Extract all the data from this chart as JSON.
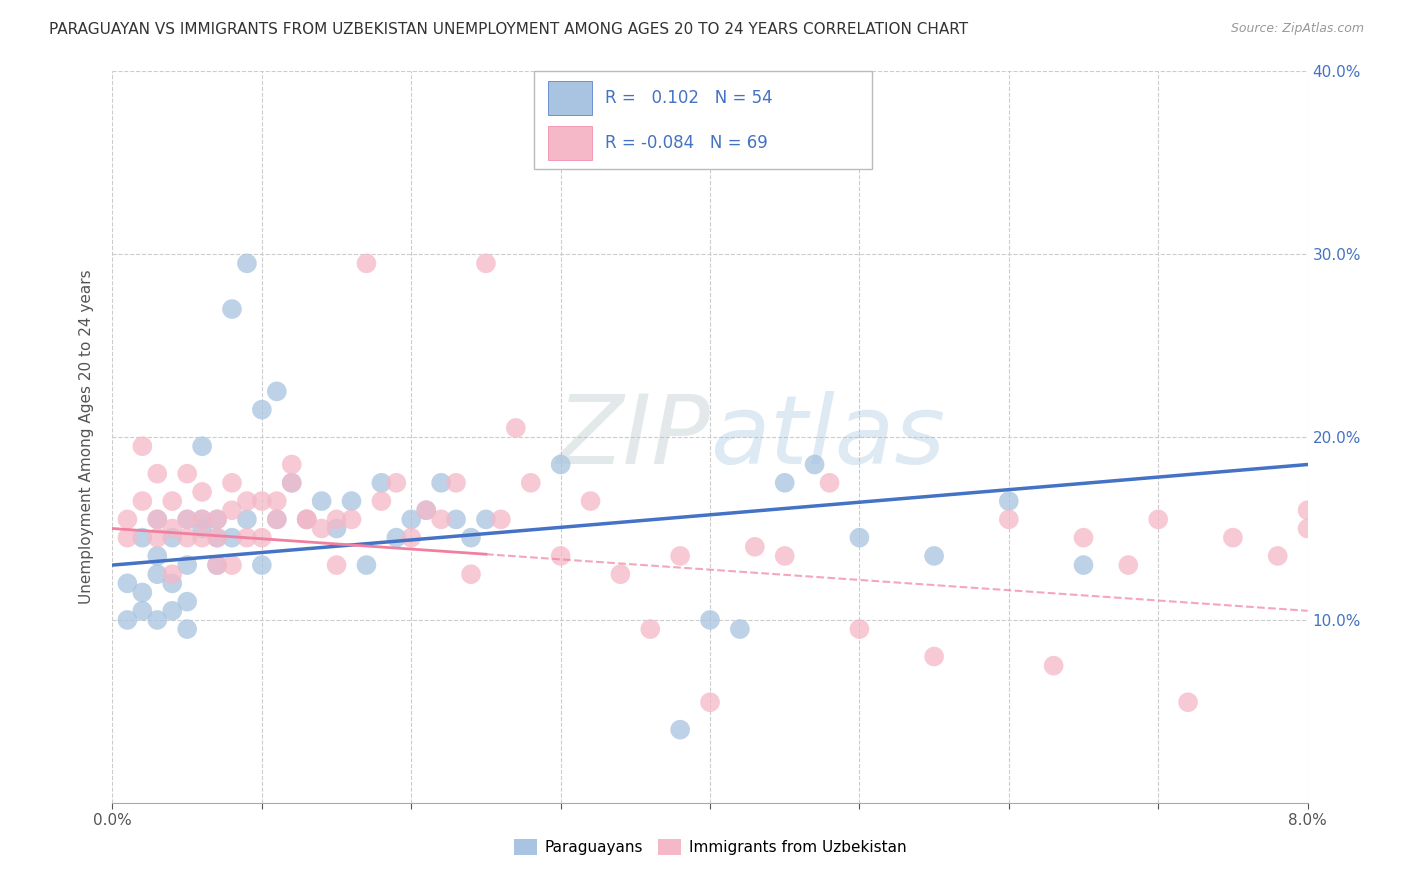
{
  "title": "PARAGUAYAN VS IMMIGRANTS FROM UZBEKISTAN UNEMPLOYMENT AMONG AGES 20 TO 24 YEARS CORRELATION CHART",
  "source": "Source: ZipAtlas.com",
  "ylabel": "Unemployment Among Ages 20 to 24 years",
  "legend_label1": "Paraguayans",
  "legend_label2": "Immigrants from Uzbekistan",
  "r1": 0.102,
  "n1": 54,
  "r2": -0.084,
  "n2": 69,
  "blue_color": "#a8c4e0",
  "pink_color": "#f4b8c8",
  "blue_line_color": "#4472c4",
  "pink_line_color": "#f080a0",
  "xmin": 0.0,
  "xmax": 0.08,
  "ymin": 0.0,
  "ymax": 0.4,
  "blue_trend_y0": 0.13,
  "blue_trend_y1": 0.185,
  "pink_trend_y0": 0.15,
  "pink_trend_y1": 0.105,
  "blue_scatter_x": [
    0.001,
    0.001,
    0.002,
    0.002,
    0.002,
    0.003,
    0.003,
    0.003,
    0.003,
    0.004,
    0.004,
    0.004,
    0.005,
    0.005,
    0.005,
    0.005,
    0.006,
    0.006,
    0.006,
    0.007,
    0.007,
    0.007,
    0.008,
    0.008,
    0.009,
    0.009,
    0.01,
    0.01,
    0.011,
    0.011,
    0.012,
    0.013,
    0.014,
    0.015,
    0.016,
    0.017,
    0.018,
    0.019,
    0.02,
    0.021,
    0.022,
    0.023,
    0.024,
    0.025,
    0.03,
    0.038,
    0.04,
    0.042,
    0.045,
    0.047,
    0.05,
    0.055,
    0.06,
    0.065
  ],
  "blue_scatter_y": [
    0.1,
    0.12,
    0.105,
    0.115,
    0.145,
    0.125,
    0.135,
    0.1,
    0.155,
    0.145,
    0.12,
    0.105,
    0.155,
    0.11,
    0.13,
    0.095,
    0.15,
    0.155,
    0.195,
    0.145,
    0.13,
    0.155,
    0.27,
    0.145,
    0.295,
    0.155,
    0.215,
    0.13,
    0.225,
    0.155,
    0.175,
    0.155,
    0.165,
    0.15,
    0.165,
    0.13,
    0.175,
    0.145,
    0.155,
    0.16,
    0.175,
    0.155,
    0.145,
    0.155,
    0.185,
    0.04,
    0.1,
    0.095,
    0.175,
    0.185,
    0.145,
    0.135,
    0.165,
    0.13
  ],
  "pink_scatter_x": [
    0.001,
    0.001,
    0.002,
    0.002,
    0.003,
    0.003,
    0.003,
    0.004,
    0.004,
    0.004,
    0.005,
    0.005,
    0.005,
    0.006,
    0.006,
    0.006,
    0.007,
    0.007,
    0.007,
    0.008,
    0.008,
    0.008,
    0.009,
    0.009,
    0.01,
    0.01,
    0.011,
    0.011,
    0.012,
    0.012,
    0.013,
    0.013,
    0.014,
    0.015,
    0.015,
    0.016,
    0.017,
    0.018,
    0.019,
    0.02,
    0.021,
    0.022,
    0.023,
    0.024,
    0.025,
    0.026,
    0.027,
    0.028,
    0.03,
    0.032,
    0.034,
    0.036,
    0.038,
    0.04,
    0.043,
    0.045,
    0.048,
    0.05,
    0.055,
    0.06,
    0.063,
    0.065,
    0.068,
    0.07,
    0.072,
    0.075,
    0.078,
    0.08,
    0.08
  ],
  "pink_scatter_y": [
    0.155,
    0.145,
    0.165,
    0.195,
    0.155,
    0.18,
    0.145,
    0.15,
    0.125,
    0.165,
    0.18,
    0.155,
    0.145,
    0.17,
    0.155,
    0.145,
    0.155,
    0.13,
    0.145,
    0.13,
    0.175,
    0.16,
    0.145,
    0.165,
    0.145,
    0.165,
    0.165,
    0.155,
    0.185,
    0.175,
    0.155,
    0.155,
    0.15,
    0.155,
    0.13,
    0.155,
    0.295,
    0.165,
    0.175,
    0.145,
    0.16,
    0.155,
    0.175,
    0.125,
    0.295,
    0.155,
    0.205,
    0.175,
    0.135,
    0.165,
    0.125,
    0.095,
    0.135,
    0.055,
    0.14,
    0.135,
    0.175,
    0.095,
    0.08,
    0.155,
    0.075,
    0.145,
    0.13,
    0.155,
    0.055,
    0.145,
    0.135,
    0.15,
    0.16
  ]
}
